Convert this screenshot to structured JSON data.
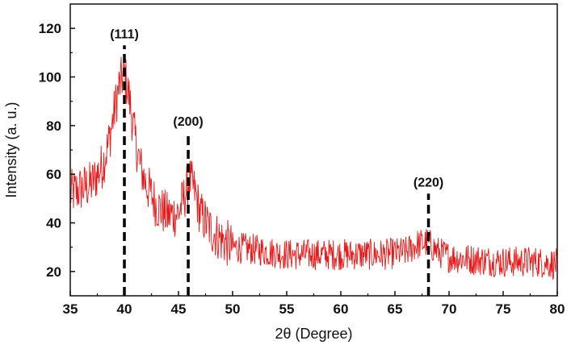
{
  "chart_data": {
    "type": "line",
    "title": "",
    "xlabel": "2θ (Degree)",
    "ylabel": "Intensity (a. u.)",
    "xlim": [
      35,
      80
    ],
    "ylim": [
      10,
      130
    ],
    "xticks": [
      35,
      40,
      45,
      50,
      55,
      60,
      65,
      70,
      75,
      80
    ],
    "yticks": [
      20,
      40,
      60,
      80,
      100,
      120
    ],
    "grid": false,
    "legend": "none",
    "line_color": "#e8191a",
    "reference_line_color": "#000000",
    "series": [
      {
        "x": [
          35,
          36,
          37,
          38,
          38.5,
          39,
          39.5,
          40,
          40.5,
          41,
          41.5,
          42,
          43,
          44,
          45,
          45.5,
          46,
          46.5,
          47,
          48,
          49,
          50,
          52,
          55,
          58,
          60,
          62,
          64,
          66,
          67,
          68,
          69,
          70,
          72,
          75,
          78,
          80
        ],
        "values": [
          52,
          54,
          56,
          64,
          72,
          84,
          96,
          102,
          90,
          74,
          63,
          56,
          47,
          43,
          44,
          50,
          58,
          53,
          44,
          37,
          33,
          30,
          29,
          27,
          27,
          27,
          27,
          27,
          28,
          31,
          32,
          28,
          26,
          25,
          24,
          24,
          23
        ]
      }
    ],
    "reference_lines": [
      {
        "x": 40,
        "label": "(111)",
        "top": 113
      },
      {
        "x": 45.9,
        "label": "(200)",
        "top": 77
      },
      {
        "x": 68.1,
        "label": "(220)",
        "top": 52
      }
    ]
  }
}
